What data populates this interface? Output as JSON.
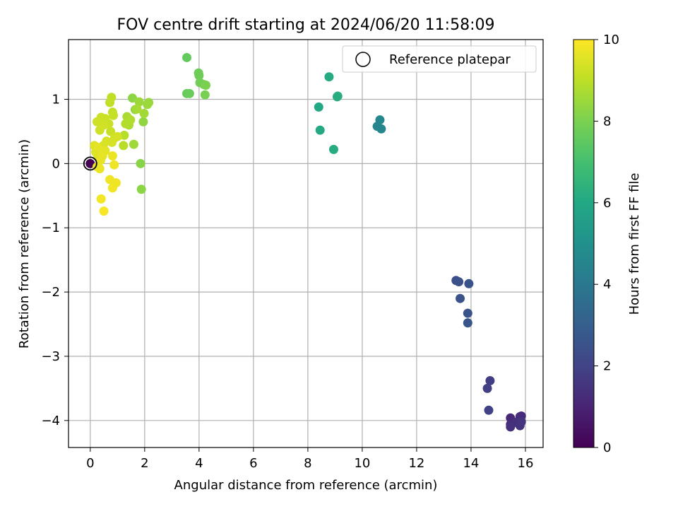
{
  "chart_data": {
    "type": "scatter",
    "title": "FOV centre drift starting at 2024/06/20 11:58:09",
    "xlabel": "Angular distance from reference (arcmin)",
    "ylabel": "Rotation from reference (arcmin)",
    "xlim": [
      -0.8,
      16.65
    ],
    "ylim": [
      -4.42,
      1.93
    ],
    "xticks": [
      0,
      2,
      4,
      6,
      8,
      10,
      12,
      14,
      16
    ],
    "yticks": [
      -4,
      -3,
      -2,
      -1,
      0,
      1
    ],
    "grid": true,
    "legend": {
      "position": "top-right",
      "entries": [
        "Reference platepar"
      ]
    },
    "reference_point": {
      "x": 0,
      "y": 0
    },
    "colorbar": {
      "label": "Hours from first FF file",
      "min": 0,
      "max": 10,
      "ticks": [
        0,
        2,
        4,
        6,
        8,
        10
      ],
      "colormap": "viridis"
    },
    "points": [
      [
        0,
        0,
        0.0
      ],
      [
        15.45,
        -3.96,
        1.1
      ],
      [
        15.8,
        -3.94,
        1.2
      ],
      [
        15.85,
        -3.93,
        1.25
      ],
      [
        15.45,
        -4.06,
        1.3
      ],
      [
        15.65,
        -4.03,
        1.35
      ],
      [
        15.45,
        -4.1,
        1.4
      ],
      [
        15.8,
        -4.08,
        1.45
      ],
      [
        15.85,
        -4.02,
        1.5
      ],
      [
        14.7,
        -3.38,
        1.8
      ],
      [
        14.6,
        -3.5,
        1.85
      ],
      [
        14.65,
        -3.84,
        1.9
      ],
      [
        13.45,
        -1.82,
        2.4
      ],
      [
        13.55,
        -1.84,
        2.45
      ],
      [
        13.6,
        -2.1,
        2.5
      ],
      [
        13.92,
        -1.87,
        2.55
      ],
      [
        13.88,
        -2.33,
        2.6
      ],
      [
        13.88,
        -2.48,
        2.65
      ],
      [
        10.55,
        0.58,
        4.5
      ],
      [
        10.65,
        0.68,
        4.55
      ],
      [
        10.7,
        0.54,
        4.6
      ],
      [
        8.4,
        0.88,
        6.0
      ],
      [
        8.45,
        0.52,
        6.05
      ],
      [
        8.78,
        1.35,
        6.1
      ],
      [
        8.95,
        0.22,
        6.15
      ],
      [
        9.08,
        1.04,
        6.2
      ],
      [
        9.1,
        1.05,
        6.22
      ],
      [
        3.55,
        1.65,
        7.6
      ],
      [
        3.55,
        1.09,
        7.65
      ],
      [
        3.65,
        1.09,
        7.7
      ],
      [
        3.98,
        1.41,
        7.75
      ],
      [
        4.0,
        1.37,
        7.8
      ],
      [
        4.03,
        1.26,
        7.85
      ],
      [
        4.18,
        1.23,
        7.9
      ],
      [
        4.22,
        1.07,
        7.95
      ],
      [
        4.25,
        1.22,
        8.0
      ],
      [
        1.85,
        0.0,
        8.2
      ],
      [
        1.88,
        -0.4,
        8.25
      ],
      [
        1.55,
        1.02,
        8.3
      ],
      [
        1.95,
        0.65,
        8.35
      ],
      [
        1.65,
        0.84,
        8.4
      ],
      [
        2.15,
        0.95,
        8.45
      ],
      [
        2.1,
        0.92,
        8.5
      ],
      [
        1.8,
        0.96,
        8.52
      ],
      [
        1.6,
        0.3,
        8.55
      ],
      [
        1.98,
        0.78,
        8.6
      ],
      [
        1.72,
        0.85,
        8.65
      ],
      [
        1.35,
        0.73,
        8.7
      ],
      [
        1.42,
        0.6,
        8.75
      ],
      [
        1.48,
        0.68,
        8.8
      ],
      [
        1.3,
        0.62,
        8.85
      ],
      [
        1.25,
        0.44,
        8.9
      ],
      [
        1.22,
        0.28,
        8.92
      ],
      [
        0.78,
        1.03,
        9.0
      ],
      [
        0.72,
        0.95,
        9.05
      ],
      [
        0.82,
        0.8,
        9.1
      ],
      [
        0.85,
        0.75,
        9.12
      ],
      [
        0.75,
        0.5,
        9.15
      ],
      [
        0.68,
        0.62,
        9.18
      ],
      [
        0.55,
        0.7,
        9.2
      ],
      [
        0.4,
        0.72,
        9.22
      ],
      [
        0.25,
        0.65,
        9.25
      ],
      [
        0.35,
        0.52,
        9.28
      ],
      [
        0.5,
        0.6,
        9.3
      ],
      [
        0.9,
        0.4,
        9.32
      ],
      [
        1.0,
        0.42,
        9.35
      ],
      [
        0.8,
        0.33,
        9.38
      ],
      [
        0.6,
        0.35,
        9.4
      ],
      [
        0.48,
        0.28,
        9.42
      ],
      [
        0.2,
        0.18,
        9.5
      ],
      [
        0.28,
        0.1,
        9.52
      ],
      [
        0.15,
        0.28,
        9.55
      ],
      [
        0.3,
        0.25,
        9.58
      ],
      [
        0.55,
        0.2,
        9.6
      ],
      [
        0.45,
        0.12,
        9.62
      ],
      [
        0.38,
        0.05,
        9.65
      ],
      [
        0.25,
        -0.05,
        9.68
      ],
      [
        0.35,
        -0.08,
        9.7
      ],
      [
        0.82,
        0.12,
        9.72
      ],
      [
        0.88,
        -0.02,
        9.75
      ],
      [
        0.72,
        -0.25,
        9.78
      ],
      [
        0.95,
        -0.3,
        9.8
      ],
      [
        0.82,
        -0.38,
        9.82
      ],
      [
        0.4,
        -0.55,
        9.85
      ],
      [
        0.5,
        -0.74,
        9.9
      ]
    ]
  }
}
